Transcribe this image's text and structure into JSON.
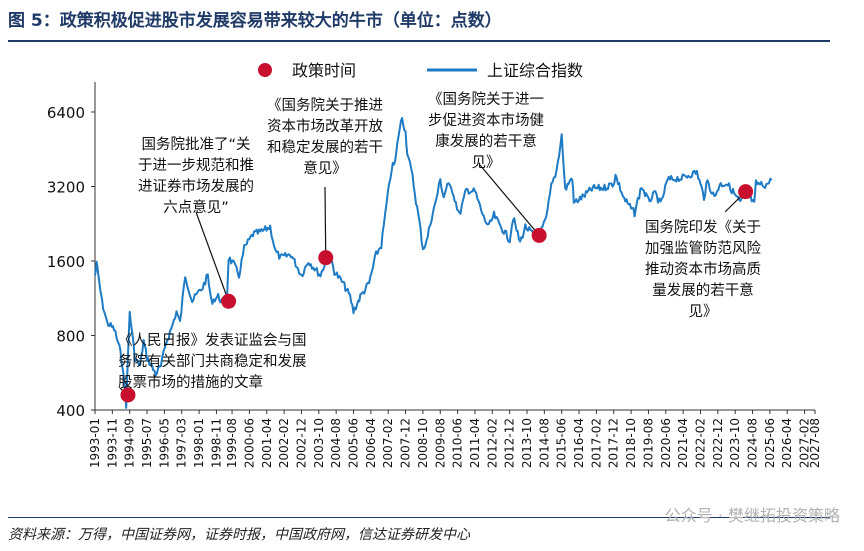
{
  "title": "图 5：政策积极促进股市发展容易带来较大的牛市（单位：点数）",
  "source": "资料来源：万得，中国证券网，证券时报，中国政府网，信达证券研发中心",
  "watermark": "公众号 · 樊继拓投资策略",
  "chart_data": {
    "type": "line",
    "title": "图 5：政策积极促进股市发展容易带来较大的牛市（单位：点数）",
    "yscale": "log",
    "ylim": [
      400,
      8000
    ],
    "yticks": [
      400,
      800,
      1600,
      3200,
      6400
    ],
    "xlim": [
      "1993-01",
      "2027-08"
    ],
    "xticks": [
      "1993-01",
      "1993-11",
      "1994-09",
      "1995-07",
      "1996-05",
      "1997-03",
      "1998-01",
      "1998-11",
      "1999-08",
      "2000-06",
      "2001-04",
      "2002-02",
      "2002-12",
      "2003-10",
      "2004-08",
      "2005-06",
      "2006-04",
      "2007-02",
      "2007-12",
      "2008-10",
      "2009-08",
      "2010-06",
      "2011-04",
      "2012-02",
      "2012-12",
      "2013-10",
      "2014-08",
      "2015-06",
      "2016-04",
      "2017-02",
      "2017-12",
      "2018-10",
      "2019-08",
      "2020-06",
      "2021-04",
      "2022-02",
      "2022-12",
      "2023-10",
      "2024-08",
      "2025-06",
      "2026-04",
      "2027-02",
      "2027-08"
    ],
    "colors": {
      "index_line": "#1e7bc4",
      "policy_marker": "#c8102e",
      "title": "#1f3a66"
    },
    "legend": {
      "placement": "top",
      "entries": [
        "政策时间",
        "上证综合指数"
      ]
    },
    "series": [
      {
        "name": "上证综合指数",
        "points": [
          [
            "1993-01",
            1400
          ],
          [
            "1993-02",
            1550
          ],
          [
            "1993-05",
            1100
          ],
          [
            "1993-08",
            900
          ],
          [
            "1993-12",
            850
          ],
          [
            "1994-03",
            720
          ],
          [
            "1994-05",
            600
          ],
          [
            "1994-07",
            420
          ],
          [
            "1994-09",
            1000
          ],
          [
            "1994-12",
            650
          ],
          [
            "1995-03",
            600
          ],
          [
            "1995-05",
            760
          ],
          [
            "1995-07",
            650
          ],
          [
            "1995-12",
            560
          ],
          [
            "1996-03",
            600
          ],
          [
            "1996-06",
            750
          ],
          [
            "1996-09",
            850
          ],
          [
            "1996-12",
            1000
          ],
          [
            "1997-02",
            900
          ],
          [
            "1997-05",
            1400
          ],
          [
            "1997-09",
            1100
          ],
          [
            "1997-12",
            1180
          ],
          [
            "1998-03",
            1250
          ],
          [
            "1998-06",
            1400
          ],
          [
            "1998-08",
            1100
          ],
          [
            "1998-12",
            1150
          ],
          [
            "1999-02",
            1100
          ],
          [
            "1999-05",
            1100
          ],
          [
            "1999-06",
            1650
          ],
          [
            "1999-09",
            1550
          ],
          [
            "1999-12",
            1400
          ],
          [
            "2000-03",
            1800
          ],
          [
            "2000-08",
            2050
          ],
          [
            "2001-01",
            2100
          ],
          [
            "2001-06",
            2200
          ],
          [
            "2001-09",
            1750
          ],
          [
            "2001-12",
            1650
          ],
          [
            "2002-06",
            1700
          ],
          [
            "2002-12",
            1400
          ],
          [
            "2003-04",
            1600
          ],
          [
            "2003-11",
            1400
          ],
          [
            "2004-04",
            1750
          ],
          [
            "2004-07",
            1450
          ],
          [
            "2004-12",
            1300
          ],
          [
            "2005-04",
            1150
          ],
          [
            "2005-06",
            1000
          ],
          [
            "2005-10",
            1150
          ],
          [
            "2006-03",
            1300
          ],
          [
            "2006-07",
            1700
          ],
          [
            "2006-10",
            1850
          ],
          [
            "2007-01",
            2700
          ],
          [
            "2007-04",
            3800
          ],
          [
            "2007-06",
            4000
          ],
          [
            "2007-08",
            5200
          ],
          [
            "2007-10",
            6100
          ],
          [
            "2007-12",
            5300
          ],
          [
            "2008-01",
            4400
          ],
          [
            "2008-04",
            3500
          ],
          [
            "2008-06",
            2800
          ],
          [
            "2008-08",
            2300
          ],
          [
            "2008-10",
            1800
          ],
          [
            "2008-12",
            1900
          ],
          [
            "2009-03",
            2400
          ],
          [
            "2009-05",
            2700
          ],
          [
            "2009-08",
            3400
          ],
          [
            "2009-10",
            2900
          ],
          [
            "2009-12",
            3250
          ],
          [
            "2010-03",
            3100
          ],
          [
            "2010-07",
            2450
          ],
          [
            "2010-11",
            3100
          ],
          [
            "2011-04",
            3050
          ],
          [
            "2011-09",
            2400
          ],
          [
            "2011-12",
            2200
          ],
          [
            "2012-03",
            2450
          ],
          [
            "2012-06",
            2250
          ],
          [
            "2012-12",
            1950
          ],
          [
            "2013-02",
            2400
          ],
          [
            "2013-06",
            1900
          ],
          [
            "2013-09",
            2200
          ],
          [
            "2013-12",
            2100
          ],
          [
            "2014-03",
            2000
          ],
          [
            "2014-05",
            2030
          ],
          [
            "2014-09",
            2350
          ],
          [
            "2014-12",
            3200
          ],
          [
            "2015-03",
            3700
          ],
          [
            "2015-06",
            5150
          ],
          [
            "2015-08",
            3100
          ],
          [
            "2015-12",
            3500
          ],
          [
            "2016-01",
            2750
          ],
          [
            "2016-06",
            2900
          ],
          [
            "2016-12",
            3150
          ],
          [
            "2017-06",
            3150
          ],
          [
            "2017-12",
            3300
          ],
          [
            "2018-01",
            3550
          ],
          [
            "2018-06",
            2850
          ],
          [
            "2018-12",
            2500
          ],
          [
            "2019-04",
            3200
          ],
          [
            "2019-08",
            2800
          ],
          [
            "2019-12",
            3000
          ],
          [
            "2020-03",
            2700
          ],
          [
            "2020-07",
            3400
          ],
          [
            "2020-12",
            3450
          ],
          [
            "2021-03",
            3450
          ],
          [
            "2021-09",
            3600
          ],
          [
            "2021-12",
            3650
          ],
          [
            "2022-04",
            2900
          ],
          [
            "2022-06",
            3350
          ],
          [
            "2022-10",
            2900
          ],
          [
            "2023-01",
            3250
          ],
          [
            "2023-05",
            3300
          ],
          [
            "2023-08",
            3100
          ],
          [
            "2024-01",
            2750
          ],
          [
            "2024-04",
            3050
          ],
          [
            "2024-06",
            2950
          ],
          [
            "2024-09",
            2700
          ],
          [
            "2024-10",
            3300
          ],
          [
            "2025-01",
            3250
          ],
          [
            "2025-04",
            3250
          ],
          [
            "2025-07",
            3400
          ]
        ]
      },
      {
        "name": "政策时间",
        "markers": [
          {
            "date": "1994-08",
            "value": 460,
            "label": "《人民日报》发表证监会与国务院有关部门共商稳定和发展股票市场的措施的文章",
            "label_lines": [
              "《人民日报》发表证监会与国",
              "务院有关部门共商稳定和发展",
              "股票市场的措施的文章"
            ]
          },
          {
            "date": "1999-06",
            "value": 1100,
            "label": "国务院批准了“关于进一步规范和推进证券市场发展的六点意见”",
            "label_lines": [
              "国务院批准了“关",
              "于进一步规范和推",
              "进证券市场发展的",
              "六点意见”"
            ]
          },
          {
            "date": "2004-02",
            "value": 1650,
            "label": "《国务院关于推进资本市场改革开放和稳定发展的若干意见》",
            "label_lines": [
              "《国务院关于推进",
              "资本市场改革开放",
              "和稳定发展的若干",
              "意见》"
            ]
          },
          {
            "date": "2014-05",
            "value": 2030,
            "label": "《国务院关于进一步促进资本市场健康发展的若干意见》",
            "label_lines": [
              "《国务院关于进一",
              "步促进资本市场健",
              "康发展的若干意",
              "见》"
            ]
          },
          {
            "date": "2024-04",
            "value": 3050,
            "label": "国务院印发《关于加强监管防范风险推动资本市场高质量发展的若干意见》",
            "label_lines": [
              "国务院印发《关于",
              "加强监管防范风险",
              "推动资本市场高质",
              "量发展的若干意",
              "见》"
            ]
          }
        ]
      }
    ]
  }
}
